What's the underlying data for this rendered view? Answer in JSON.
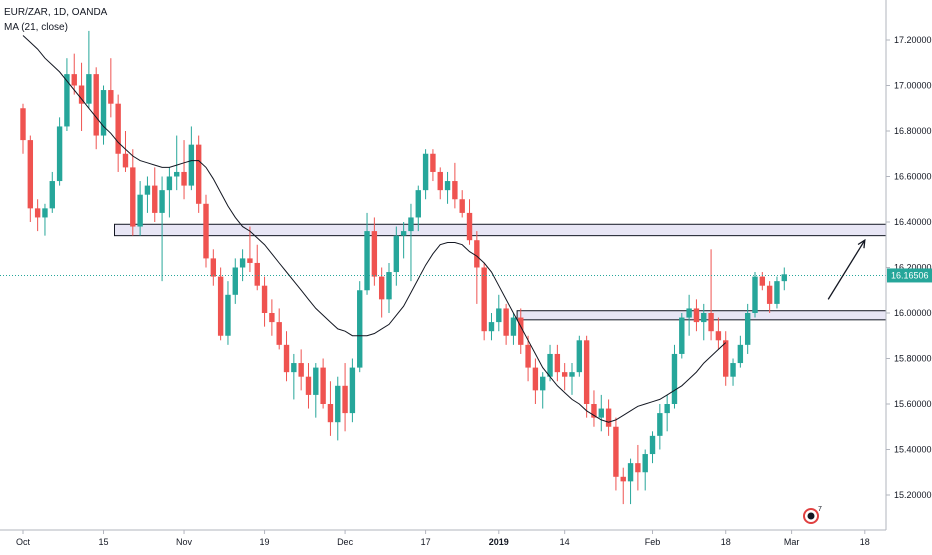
{
  "header": {
    "symbol": "EUR/ZAR, 1D, OANDA",
    "indicator": "MA (21, close)"
  },
  "colors": {
    "up": "#26a69a",
    "down": "#ef5350",
    "ma": "#131722",
    "last_price_line": "#26a69a",
    "zone_fill": "#e8e6f5",
    "zone_stroke": "#131722",
    "axis_text": "#131722",
    "background": "#ffffff"
  },
  "chart_data": {
    "type": "candlestick",
    "last_price": 16.16506,
    "last_price_label": "16.16506",
    "y_axis": {
      "ylim": [
        15.08,
        17.36
      ],
      "ticks": [
        "17.20000",
        "17.00000",
        "16.80000",
        "16.60000",
        "16.40000",
        "16.20000",
        "16.00000",
        "15.80000",
        "15.60000",
        "15.40000",
        "15.20000"
      ],
      "tick_values": [
        17.2,
        17.0,
        16.8,
        16.6,
        16.4,
        16.2,
        16.0,
        15.8,
        15.6,
        15.4,
        15.2
      ]
    },
    "x_axis": {
      "labels": [
        "Oct",
        "15",
        "Nov",
        "19",
        "Dec",
        "17",
        "2019",
        "14",
        "Feb",
        "18",
        "Mar",
        "18"
      ],
      "bold": [
        false,
        false,
        false,
        false,
        false,
        false,
        true,
        false,
        false,
        false,
        false,
        false
      ],
      "bar_index": [
        0,
        11,
        22,
        33,
        44,
        55,
        65,
        74,
        86,
        96,
        105,
        115
      ]
    },
    "candles": [
      [
        16.9,
        16.92,
        16.7,
        16.76
      ],
      [
        16.76,
        16.78,
        16.4,
        16.46
      ],
      [
        16.46,
        16.5,
        16.36,
        16.42
      ],
      [
        16.42,
        16.48,
        16.34,
        16.46
      ],
      [
        16.46,
        16.62,
        16.44,
        16.58
      ],
      [
        16.58,
        16.86,
        16.56,
        16.82
      ],
      [
        16.82,
        17.12,
        16.8,
        17.05
      ],
      [
        17.05,
        17.14,
        16.96,
        17.0
      ],
      [
        17.0,
        17.1,
        16.8,
        16.92
      ],
      [
        16.92,
        17.24,
        16.9,
        17.05
      ],
      [
        17.05,
        17.08,
        16.72,
        16.78
      ],
      [
        16.78,
        17.0,
        16.74,
        16.98
      ],
      [
        16.98,
        17.12,
        16.86,
        16.92
      ],
      [
        16.92,
        16.96,
        16.62,
        16.7
      ],
      [
        16.7,
        16.8,
        16.62,
        16.64
      ],
      [
        16.64,
        16.72,
        16.34,
        16.38
      ],
      [
        16.38,
        16.58,
        16.34,
        16.52
      ],
      [
        16.52,
        16.6,
        16.44,
        16.56
      ],
      [
        16.56,
        16.64,
        16.4,
        16.44
      ],
      [
        16.44,
        16.6,
        16.14,
        16.54
      ],
      [
        16.54,
        16.64,
        16.42,
        16.6
      ],
      [
        16.6,
        16.78,
        16.54,
        16.62
      ],
      [
        16.62,
        16.76,
        16.5,
        16.56
      ],
      [
        16.56,
        16.82,
        16.54,
        16.74
      ],
      [
        16.74,
        16.78,
        16.44,
        16.48
      ],
      [
        16.48,
        16.52,
        16.2,
        16.24
      ],
      [
        16.24,
        16.28,
        16.12,
        16.16
      ],
      [
        16.16,
        16.2,
        15.88,
        15.9
      ],
      [
        15.9,
        16.14,
        15.86,
        16.08
      ],
      [
        16.08,
        16.24,
        16.04,
        16.2
      ],
      [
        16.2,
        16.28,
        16.14,
        16.24
      ],
      [
        16.24,
        16.38,
        16.18,
        16.22
      ],
      [
        16.22,
        16.3,
        16.1,
        16.12
      ],
      [
        16.12,
        16.16,
        15.94,
        16.0
      ],
      [
        16.0,
        16.06,
        15.9,
        15.96
      ],
      [
        15.96,
        16.02,
        15.84,
        15.86
      ],
      [
        15.86,
        15.92,
        15.7,
        15.74
      ],
      [
        15.74,
        15.82,
        15.62,
        15.78
      ],
      [
        15.78,
        15.84,
        15.66,
        15.72
      ],
      [
        15.72,
        15.78,
        15.58,
        15.64
      ],
      [
        15.64,
        15.78,
        15.54,
        15.76
      ],
      [
        15.76,
        15.8,
        15.58,
        15.6
      ],
      [
        15.6,
        15.7,
        15.46,
        15.52
      ],
      [
        15.52,
        15.72,
        15.44,
        15.68
      ],
      [
        15.68,
        15.78,
        15.48,
        15.56
      ],
      [
        15.56,
        15.8,
        15.52,
        15.76
      ],
      [
        15.76,
        16.14,
        15.74,
        16.1
      ],
      [
        16.1,
        16.44,
        16.08,
        16.36
      ],
      [
        16.36,
        16.42,
        16.12,
        16.16
      ],
      [
        16.16,
        16.2,
        15.98,
        16.06
      ],
      [
        16.06,
        16.22,
        16.0,
        16.18
      ],
      [
        16.18,
        16.38,
        16.12,
        16.34
      ],
      [
        16.34,
        16.4,
        16.24,
        16.36
      ],
      [
        16.36,
        16.48,
        16.14,
        16.42
      ],
      [
        16.42,
        16.56,
        16.36,
        16.54
      ],
      [
        16.54,
        16.72,
        16.5,
        16.7
      ],
      [
        16.7,
        16.72,
        16.58,
        16.62
      ],
      [
        16.62,
        16.64,
        16.5,
        16.54
      ],
      [
        16.54,
        16.62,
        16.48,
        16.58
      ],
      [
        16.58,
        16.66,
        16.46,
        16.5
      ],
      [
        16.5,
        16.54,
        16.42,
        16.44
      ],
      [
        16.44,
        16.5,
        16.3,
        16.32
      ],
      [
        16.32,
        16.36,
        16.04,
        16.2
      ],
      [
        16.2,
        16.22,
        15.88,
        15.92
      ],
      [
        15.92,
        16.0,
        15.88,
        15.96
      ],
      [
        15.96,
        16.08,
        15.92,
        16.02
      ],
      [
        16.02,
        16.04,
        15.86,
        15.9
      ],
      [
        15.9,
        16.0,
        15.86,
        15.98
      ],
      [
        15.98,
        16.02,
        15.82,
        15.86
      ],
      [
        15.86,
        15.9,
        15.7,
        15.76
      ],
      [
        15.76,
        15.8,
        15.6,
        15.66
      ],
      [
        15.66,
        15.74,
        15.58,
        15.72
      ],
      [
        15.72,
        15.86,
        15.7,
        15.82
      ],
      [
        15.82,
        15.86,
        15.7,
        15.74
      ],
      [
        15.74,
        15.78,
        15.66,
        15.72
      ],
      [
        15.72,
        15.78,
        15.64,
        15.74
      ],
      [
        15.74,
        15.9,
        15.72,
        15.88
      ],
      [
        15.88,
        15.9,
        15.54,
        15.6
      ],
      [
        15.6,
        15.66,
        15.5,
        15.54
      ],
      [
        15.54,
        15.64,
        15.48,
        15.58
      ],
      [
        15.58,
        15.62,
        15.46,
        15.5
      ],
      [
        15.5,
        15.54,
        15.22,
        15.28
      ],
      [
        15.28,
        15.32,
        15.16,
        15.26
      ],
      [
        15.26,
        15.36,
        15.16,
        15.34
      ],
      [
        15.34,
        15.42,
        15.22,
        15.3
      ],
      [
        15.3,
        15.4,
        15.22,
        15.38
      ],
      [
        15.38,
        15.48,
        15.34,
        15.46
      ],
      [
        15.46,
        15.6,
        15.4,
        15.56
      ],
      [
        15.56,
        15.64,
        15.48,
        15.6
      ],
      [
        15.6,
        15.86,
        15.58,
        15.82
      ],
      [
        15.82,
        16.0,
        15.8,
        15.98
      ],
      [
        15.98,
        16.08,
        15.9,
        16.02
      ],
      [
        16.02,
        16.06,
        15.92,
        15.96
      ],
      [
        15.96,
        16.04,
        15.88,
        16.0
      ],
      [
        16.0,
        16.28,
        15.88,
        15.92
      ],
      [
        15.92,
        15.98,
        15.84,
        15.88
      ],
      [
        15.88,
        15.92,
        15.68,
        15.72
      ],
      [
        15.72,
        15.8,
        15.68,
        15.78
      ],
      [
        15.78,
        15.9,
        15.76,
        15.86
      ],
      [
        15.86,
        16.04,
        15.82,
        16.0
      ],
      [
        16.0,
        16.18,
        15.98,
        16.16
      ],
      [
        16.16,
        16.18,
        16.1,
        16.12
      ],
      [
        16.12,
        16.14,
        16.0,
        16.04
      ],
      [
        16.04,
        16.16,
        16.02,
        16.14
      ],
      [
        16.14,
        16.2,
        16.1,
        16.17
      ]
    ],
    "moving_average": {
      "name": "MA (21, close)",
      "period": 21,
      "values": [
        17.22,
        17.19,
        17.16,
        17.12,
        17.09,
        17.06,
        17.02,
        16.98,
        16.94,
        16.9,
        16.86,
        16.82,
        16.79,
        16.75,
        16.72,
        16.69,
        16.67,
        16.66,
        16.65,
        16.64,
        16.64,
        16.65,
        16.66,
        16.67,
        16.67,
        16.64,
        16.59,
        16.53,
        16.47,
        16.42,
        16.38,
        16.36,
        16.33,
        16.3,
        16.26,
        16.22,
        16.18,
        16.14,
        16.1,
        16.06,
        16.02,
        15.99,
        15.96,
        15.93,
        15.92,
        15.9,
        15.9,
        15.9,
        15.91,
        15.93,
        15.95,
        15.99,
        16.03,
        16.09,
        16.15,
        16.21,
        16.26,
        16.3,
        16.31,
        16.31,
        16.3,
        16.27,
        16.25,
        16.22,
        16.18,
        16.12,
        16.06,
        16.0,
        15.94,
        15.88,
        15.82,
        15.76,
        15.72,
        15.68,
        15.65,
        15.62,
        15.6,
        15.57,
        15.55,
        15.53,
        15.52,
        15.53,
        15.55,
        15.57,
        15.59,
        15.6,
        15.61,
        15.62,
        15.64,
        15.66,
        15.68,
        15.71,
        15.74,
        15.78,
        15.81,
        15.84,
        15.87
      ]
    },
    "horizontal_zones": [
      {
        "top": 16.39,
        "bottom": 16.34,
        "from_bar": 13,
        "to_bar": 122
      },
      {
        "top": 16.01,
        "bottom": 15.97,
        "from_bar": 68,
        "to_bar": 122
      }
    ],
    "arrow": {
      "from_bar": 110,
      "from_value": 16.06,
      "to_bar": 115,
      "to_value": 16.32
    },
    "grid": false,
    "legend": "top-left"
  }
}
